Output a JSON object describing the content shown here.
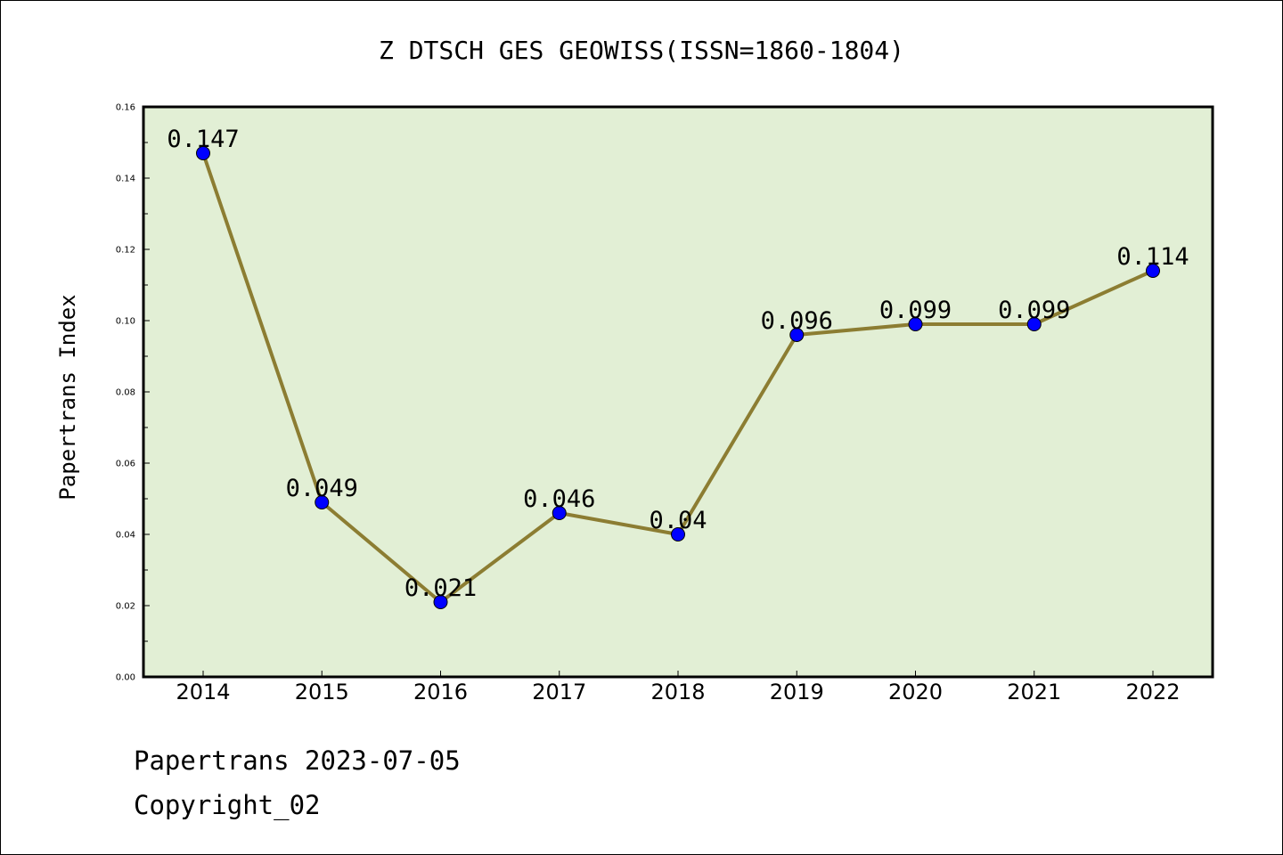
{
  "chart_data": {
    "type": "line",
    "title": "Z DTSCH GES GEOWISS(ISSN=1860-1804)",
    "xlabel": "",
    "ylabel": "Papertrans Index",
    "categories": [
      "2014",
      "2015",
      "2016",
      "2017",
      "2018",
      "2019",
      "2020",
      "2021",
      "2022"
    ],
    "values": [
      0.147,
      0.049,
      0.021,
      0.046,
      0.04,
      0.096,
      0.099,
      0.099,
      0.114
    ],
    "data_labels": [
      "0.147",
      "0.049",
      "0.021",
      "0.046",
      "0.04",
      "0.096",
      "0.099",
      "0.099",
      "0.114"
    ],
    "ylim": [
      0,
      0.16
    ],
    "y_ticks": [
      "0.00",
      "0.02",
      "0.04",
      "0.06",
      "0.08",
      "0.10",
      "0.12",
      "0.14",
      "0.16"
    ],
    "grid": false,
    "colors": {
      "plot_background": "#e2efd5",
      "line": "#8c7d32",
      "marker": "#0000ff"
    }
  },
  "footer": {
    "date_text": "Papertrans 2023-07-05",
    "copyright_text": "Copyright_02"
  }
}
